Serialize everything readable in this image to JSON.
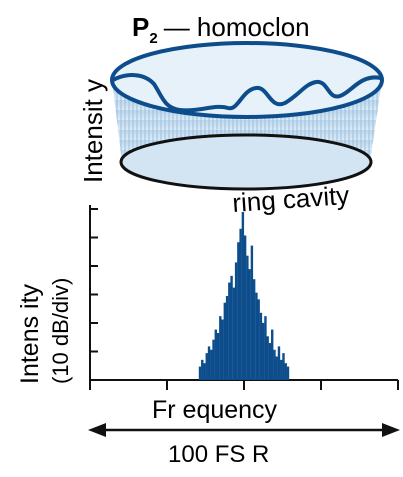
{
  "top_panel": {
    "title_symbol": "P",
    "title_subscript": "2",
    "title_rest": "— homoclon",
    "y_label": "Intensit y",
    "ring_label": "ring cavity",
    "colors": {
      "ring_stroke": "#0d4d8c",
      "curve": "#0d4d8c",
      "fill_top": "#bcd7ec",
      "fill_bottom": "#dcebf6"
    }
  },
  "spectrum": {
    "y_label_line1": "Intens ity",
    "y_label_line2": "(10 dB/div)",
    "x_label": "Fr equency",
    "span_label": "100   FS R",
    "bar_color": "#0d4d8c",
    "chart_data": {
      "type": "bar",
      "title": "",
      "xlabel": "Fr equency",
      "ylabel": "Intens ity (10 dB/div)",
      "mode_index_range": [
        -150,
        150
      ],
      "values_fraction_of_max": [
        0.08,
        0.12,
        0.1,
        0.16,
        0.2,
        0.18,
        0.24,
        0.3,
        0.28,
        0.38,
        0.36,
        0.46,
        0.5,
        0.58,
        0.62,
        0.55,
        0.7,
        0.82,
        0.9,
        1.0,
        0.86,
        0.74,
        0.66,
        0.8,
        0.6,
        0.52,
        0.48,
        0.4,
        0.34,
        0.38,
        0.26,
        0.22,
        0.3,
        0.18,
        0.14,
        0.2,
        0.12,
        0.16,
        0.1,
        0.08
      ],
      "grid": false
    }
  }
}
